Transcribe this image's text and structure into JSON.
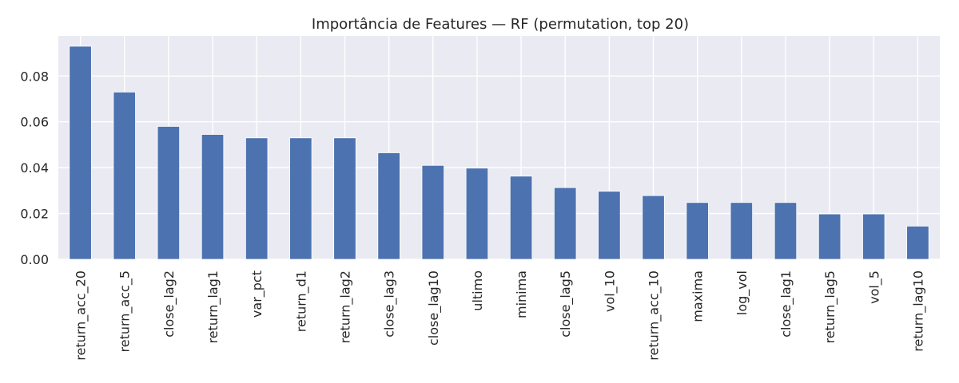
{
  "chart_data": {
    "type": "bar",
    "title": "Importância de Features — RF (permutation, top 20)",
    "xlabel": "",
    "ylabel": "",
    "categories": [
      "return_acc_20",
      "return_acc_5",
      "close_lag2",
      "return_lag1",
      "var_pct",
      "return_d1",
      "return_lag2",
      "close_lag3",
      "close_lag10",
      "ultimo",
      "minima",
      "close_lag5",
      "vol_10",
      "return_acc_10",
      "maxima",
      "log_vol",
      "close_lag1",
      "return_lag5",
      "vol_5",
      "return_lag10"
    ],
    "values": [
      0.093,
      0.073,
      0.058,
      0.0545,
      0.053,
      0.053,
      0.053,
      0.0465,
      0.041,
      0.0398,
      0.0363,
      0.0313,
      0.0297,
      0.0278,
      0.0248,
      0.0248,
      0.0248,
      0.0198,
      0.0198,
      0.0145
    ],
    "ylim": [
      0,
      0.0975
    ],
    "yticks": [
      0.0,
      0.02,
      0.04,
      0.06,
      0.08
    ],
    "ytick_labels": [
      "0.00",
      "0.02",
      "0.04",
      "0.06",
      "0.08"
    ],
    "grid": true,
    "colors": {
      "bar": "#4c72b0",
      "plot_bg": "#eaeaf2",
      "grid": "#ffffff",
      "text": "#262626"
    }
  }
}
